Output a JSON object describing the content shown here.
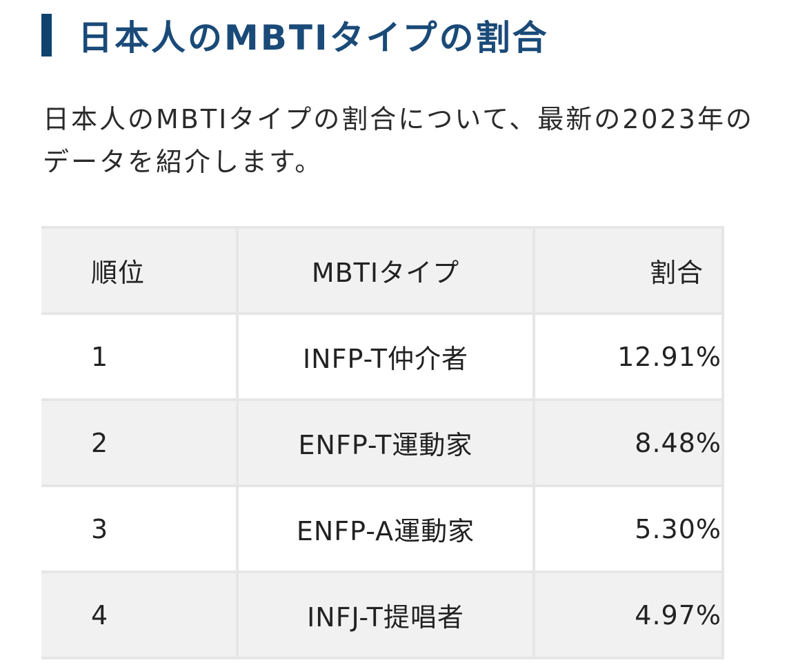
{
  "heading": "日本人のMBTIタイプの割合",
  "intro": "日本人のMBTIタイプの割合について、最新の2023年のデータを紹介します。",
  "table": {
    "headers": {
      "rank": "順位",
      "type": "MBTIタイプ",
      "ratio": "割合"
    },
    "rows": [
      {
        "rank": "1",
        "type": "INFP-T仲介者",
        "ratio": "12.91%"
      },
      {
        "rank": "2",
        "type": "ENFP-T運動家",
        "ratio": "8.48%"
      },
      {
        "rank": "3",
        "type": "ENFP-A運動家",
        "ratio": "5.30%"
      },
      {
        "rank": "4",
        "type": "INFJ-T提唱者",
        "ratio": "4.97%"
      }
    ]
  },
  "colors": {
    "heading_bar": "#10426e",
    "heading_text": "#1a4a78",
    "table_border": "#e6e6e6",
    "row_shade": "#f1f1f1"
  }
}
